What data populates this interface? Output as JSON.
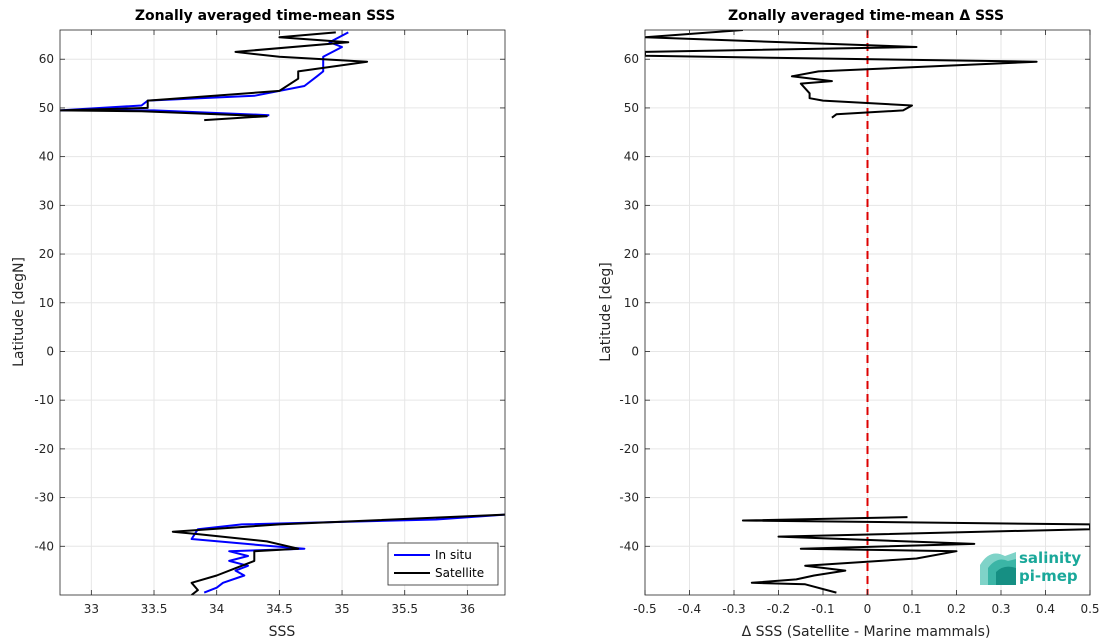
{
  "chart_data": [
    {
      "type": "line",
      "title": "Zonally averaged time-mean SSS",
      "xlabel": "SSS",
      "ylabel": "Latitude [degN]",
      "xlim": [
        32.75,
        36.3
      ],
      "ylim": [
        -50,
        66
      ],
      "xticks": [
        "33",
        "33.5",
        "34",
        "34.5",
        "35",
        "35.5",
        "36"
      ],
      "yticks": [
        "-40",
        "-30",
        "-20",
        "-10",
        "0",
        "10",
        "20",
        "30",
        "40",
        "50",
        "60"
      ],
      "grid": true,
      "legend": "bottom-right",
      "series": [
        {
          "name": "In situ",
          "color": "#0000ff",
          "segments": [
            [
              [
                35.05,
                65.5
              ],
              [
                34.9,
                63.5
              ],
              [
                35.0,
                62.5
              ],
              [
                34.85,
                60.5
              ],
              [
                34.85,
                57.5
              ],
              [
                34.8,
                56.5
              ],
              [
                34.7,
                54.5
              ],
              [
                34.3,
                52.5
              ],
              [
                33.45,
                51.5
              ],
              [
                33.4,
                50.5
              ],
              [
                32.75,
                49.5
              ],
              [
                33.5,
                49.5
              ],
              [
                34.42,
                48.5
              ]
            ],
            [
              [
                36.3,
                -33.5
              ],
              [
                35.75,
                -34.5
              ],
              [
                34.2,
                -35.5
              ],
              [
                33.85,
                -36.5
              ],
              [
                33.8,
                -38.5
              ],
              [
                34.45,
                -40
              ],
              [
                34.7,
                -40.5
              ],
              [
                34.1,
                -41
              ],
              [
                34.25,
                -42
              ],
              [
                34.1,
                -43
              ],
              [
                34.25,
                -44
              ],
              [
                34.15,
                -45
              ],
              [
                34.22,
                -46
              ],
              [
                34.05,
                -47.5
              ],
              [
                34.0,
                -48.5
              ],
              [
                33.9,
                -49.5
              ]
            ]
          ]
        },
        {
          "name": "Satellite",
          "color": "#000000",
          "segments": [
            [
              [
                34.95,
                65.5
              ],
              [
                34.5,
                64.5
              ],
              [
                35.05,
                63.5
              ],
              [
                34.15,
                61.5
              ],
              [
                34.5,
                60.5
              ],
              [
                35.2,
                59.5
              ],
              [
                34.65,
                57.5
              ],
              [
                34.65,
                56
              ],
              [
                34.5,
                53.5
              ],
              [
                33.45,
                51.5
              ],
              [
                33.45,
                50
              ],
              [
                32.75,
                49.5
              ],
              [
                33.4,
                49.3
              ],
              [
                34.4,
                48.3
              ],
              [
                33.9,
                47.5
              ]
            ],
            [
              [
                36.3,
                -33.5
              ],
              [
                34.5,
                -35.5
              ],
              [
                33.65,
                -37
              ],
              [
                33.85,
                -37.5
              ],
              [
                34.4,
                -39
              ],
              [
                34.65,
                -40.5
              ],
              [
                34.3,
                -41
              ],
              [
                34.3,
                -43
              ],
              [
                34.15,
                -44.5
              ],
              [
                34.0,
                -46
              ],
              [
                33.8,
                -47.5
              ],
              [
                33.85,
                -49
              ],
              [
                33.8,
                -50
              ]
            ]
          ]
        }
      ]
    },
    {
      "type": "line",
      "title": "Zonally averaged time-mean Δ SSS",
      "xlabel": "Δ SSS (Satellite - Marine mammals)",
      "ylabel": "Latitude [deg]",
      "xlim": [
        -0.5,
        0.5
      ],
      "ylim": [
        -50,
        66
      ],
      "xticks": [
        "-0.5",
        "-0.4",
        "-0.3",
        "-0.2",
        "-0.1",
        "0",
        "0.1",
        "0.2",
        "0.3",
        "0.4",
        "0.5"
      ],
      "yticks": [
        "-40",
        "-30",
        "-20",
        "-10",
        "0",
        "10",
        "20",
        "30",
        "40",
        "50",
        "60"
      ],
      "grid": true,
      "zero_line": {
        "x": 0,
        "color": "#dd0000",
        "style": "dashed"
      },
      "series": [
        {
          "color": "#000000",
          "segments": [
            [
              [
                -0.28,
                66
              ],
              [
                -0.5,
                64.5
              ],
              [
                0.11,
                62.5
              ],
              [
                -0.5,
                61.5
              ],
              [
                -0.5,
                60.7
              ],
              [
                0.38,
                59.5
              ],
              [
                -0.11,
                57.5
              ],
              [
                -0.17,
                56.5
              ],
              [
                -0.08,
                55.5
              ],
              [
                -0.15,
                55
              ],
              [
                -0.13,
                53
              ],
              [
                -0.13,
                52
              ],
              [
                -0.1,
                51.5
              ],
              [
                0.1,
                50.5
              ],
              [
                0.08,
                49.5
              ],
              [
                -0.07,
                48.7
              ],
              [
                -0.08,
                48
              ]
            ],
            [
              [
                0.09,
                -34
              ],
              [
                -0.28,
                -34.7
              ],
              [
                0.5,
                -35.5
              ],
              [
                0.5,
                -36.5
              ],
              [
                -0.2,
                -38
              ],
              [
                0.24,
                -39.5
              ],
              [
                -0.15,
                -40.5
              ],
              [
                0.2,
                -41
              ],
              [
                0.11,
                -42.5
              ],
              [
                -0.14,
                -44
              ],
              [
                -0.05,
                -45
              ],
              [
                -0.12,
                -46
              ],
              [
                -0.16,
                -46.8
              ],
              [
                -0.26,
                -47.5
              ],
              [
                -0.14,
                -47.8
              ],
              [
                -0.07,
                -49.5
              ]
            ]
          ]
        }
      ]
    }
  ],
  "legend": {
    "items": [
      "In situ",
      "Satellite"
    ]
  },
  "logo": {
    "line1": "salinity",
    "line2": "pi-mep",
    "color": "#1aa89a"
  }
}
